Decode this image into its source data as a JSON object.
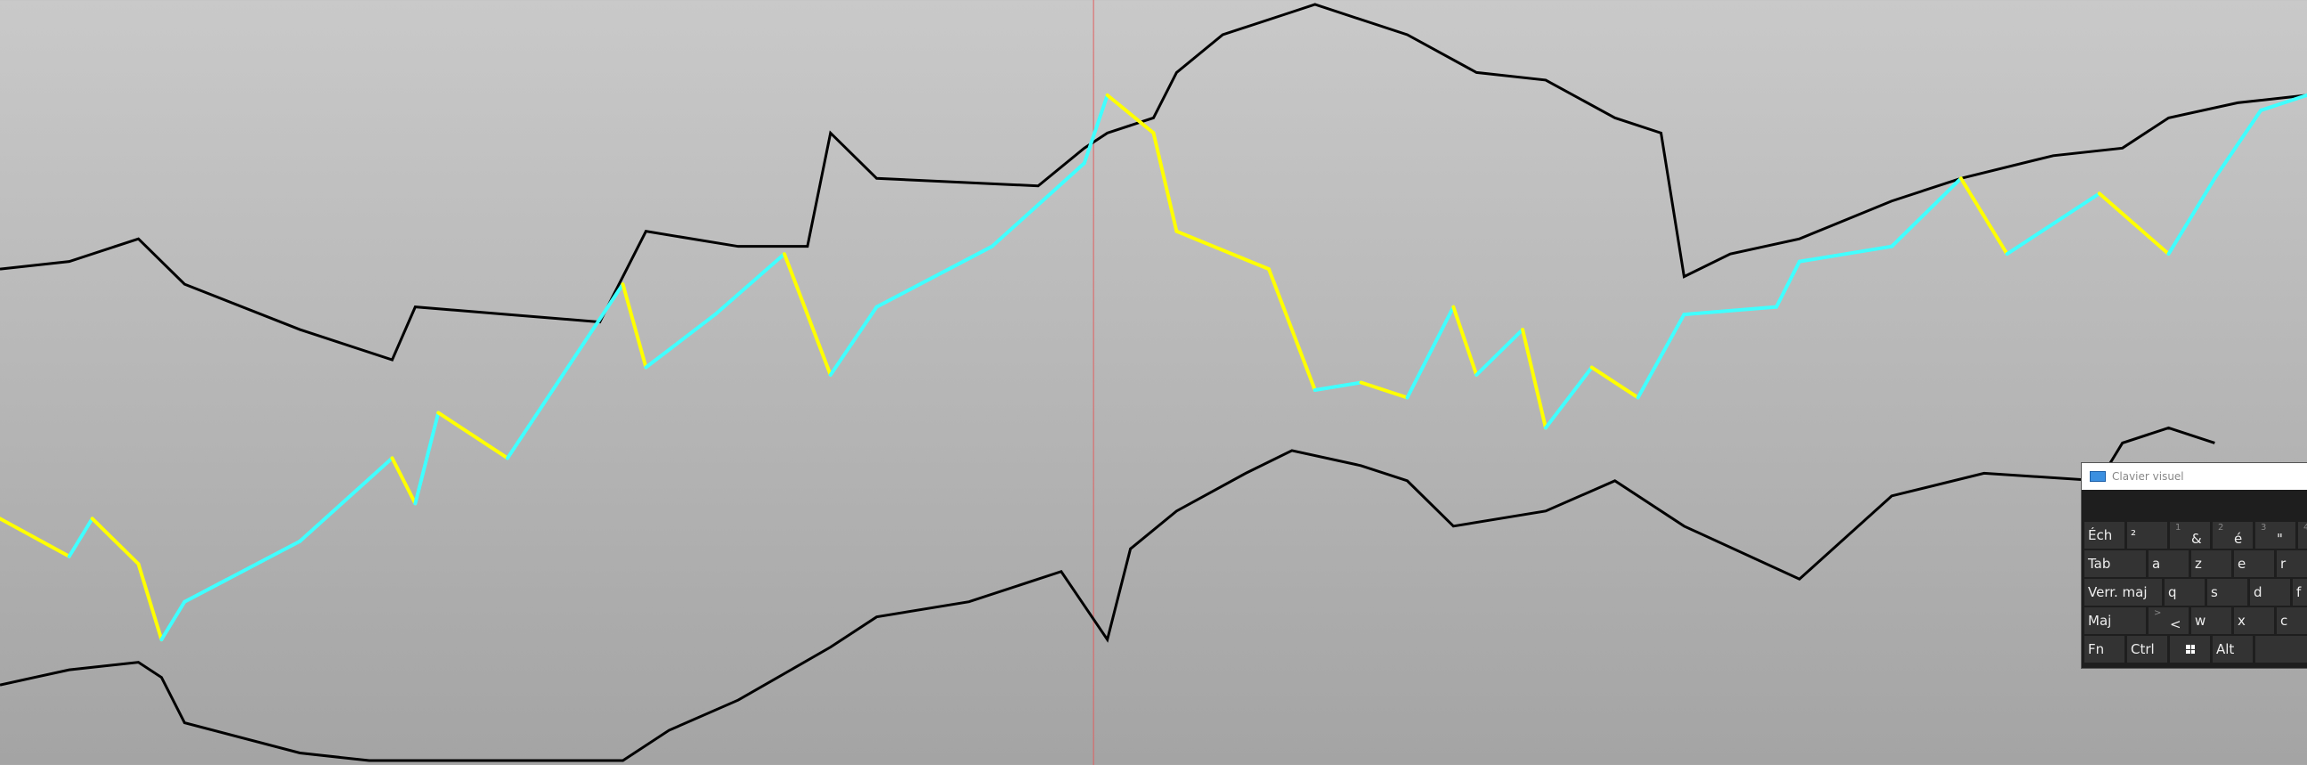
{
  "chart_data": {
    "type": "line",
    "title": "",
    "xlabel": "",
    "ylabel": "",
    "xlim": [
      0,
      100
    ],
    "ylim": [
      0,
      100
    ],
    "grid": false,
    "background": [
      "#c9c9c9",
      "#a4a4a4"
    ],
    "cursor_line_color": "#e06060",
    "series": [
      {
        "color": "#000000",
        "points": [
          [
            0,
            65
          ],
          [
            3,
            66
          ],
          [
            6,
            69
          ],
          [
            8,
            63
          ],
          [
            13,
            57
          ],
          [
            17,
            53
          ],
          [
            18,
            60
          ],
          [
            22,
            59
          ],
          [
            26,
            58
          ],
          [
            28,
            70
          ],
          [
            32,
            68
          ],
          [
            35,
            68
          ],
          [
            36,
            83
          ],
          [
            38,
            77
          ],
          [
            45,
            76
          ],
          [
            47,
            81
          ],
          [
            48,
            83
          ],
          [
            50,
            85
          ],
          [
            51,
            91
          ],
          [
            53,
            96
          ],
          [
            56,
            99
          ],
          [
            57,
            100
          ],
          [
            61,
            96
          ],
          [
            64,
            91
          ],
          [
            67,
            90
          ],
          [
            70,
            85
          ],
          [
            72,
            83
          ],
          [
            73,
            64
          ],
          [
            75,
            67
          ],
          [
            78,
            69
          ],
          [
            82,
            74
          ],
          [
            85,
            77
          ],
          [
            89,
            80
          ],
          [
            92,
            81
          ],
          [
            94,
            85
          ],
          [
            97,
            87
          ],
          [
            100,
            88
          ]
        ]
      },
      {
        "color_up": "#40ffff",
        "color_down": "#ffff00",
        "points": [
          [
            0,
            32
          ],
          [
            3,
            27
          ],
          [
            4,
            32
          ],
          [
            6,
            26
          ],
          [
            7,
            16
          ],
          [
            8,
            21
          ],
          [
            13,
            29
          ],
          [
            17,
            40
          ],
          [
            18,
            34
          ],
          [
            19,
            46
          ],
          [
            22,
            40
          ],
          [
            27,
            63
          ],
          [
            28,
            52
          ],
          [
            31,
            59
          ],
          [
            34,
            67
          ],
          [
            36,
            51
          ],
          [
            38,
            60
          ],
          [
            43,
            68
          ],
          [
            47,
            79
          ],
          [
            48,
            88
          ],
          [
            50,
            83
          ],
          [
            51,
            70
          ],
          [
            55,
            65
          ],
          [
            57,
            49
          ],
          [
            59,
            50
          ],
          [
            61,
            48
          ],
          [
            63,
            60
          ],
          [
            64,
            51
          ],
          [
            66,
            57
          ],
          [
            67,
            44
          ],
          [
            69,
            52
          ],
          [
            71,
            48
          ],
          [
            73,
            59
          ],
          [
            77,
            60
          ],
          [
            78,
            66
          ],
          [
            82,
            68
          ],
          [
            85,
            77
          ],
          [
            87,
            67
          ],
          [
            91,
            75
          ],
          [
            94,
            67
          ],
          [
            96,
            77
          ],
          [
            98,
            86
          ],
          [
            100,
            88
          ]
        ]
      },
      {
        "color": "#000000",
        "points": [
          [
            0,
            10
          ],
          [
            3,
            12
          ],
          [
            6,
            13
          ],
          [
            7,
            11
          ],
          [
            8,
            5
          ],
          [
            13,
            1
          ],
          [
            16,
            0
          ],
          [
            22,
            0
          ],
          [
            27,
            0
          ],
          [
            29,
            4
          ],
          [
            32,
            8
          ],
          [
            36,
            15
          ],
          [
            38,
            19
          ],
          [
            42,
            21
          ],
          [
            46,
            25
          ],
          [
            48,
            16
          ],
          [
            49,
            28
          ],
          [
            51,
            33
          ],
          [
            54,
            38
          ],
          [
            56,
            41
          ],
          [
            59,
            39
          ],
          [
            61,
            37
          ],
          [
            63,
            31
          ],
          [
            67,
            33
          ],
          [
            70,
            37
          ],
          [
            73,
            31
          ],
          [
            78,
            24
          ],
          [
            82,
            35
          ],
          [
            86,
            38
          ],
          [
            91,
            37
          ],
          [
            92,
            42
          ],
          [
            94,
            44
          ],
          [
            96,
            42
          ]
        ]
      }
    ],
    "cursor_x": 47.4
  },
  "keyboard": {
    "title": "Clavier visuel",
    "rows": [
      [
        {
          "label": "Éch"
        },
        {
          "label": "²"
        },
        {
          "sup": "1",
          "label": "&"
        },
        {
          "sup": "2",
          "label": "é"
        },
        {
          "sup": "3",
          "label": "\""
        },
        {
          "sup": "4",
          "label": ""
        }
      ],
      [
        {
          "label": "Tab"
        },
        {
          "label": "a"
        },
        {
          "label": "z"
        },
        {
          "label": "e"
        },
        {
          "label": "r"
        }
      ],
      [
        {
          "label": "Verr. maj"
        },
        {
          "label": "q"
        },
        {
          "label": "s"
        },
        {
          "label": "d"
        },
        {
          "label": "f"
        }
      ],
      [
        {
          "label": "Maj"
        },
        {
          "sup": ">",
          "label": "<"
        },
        {
          "label": "w"
        },
        {
          "label": "x"
        },
        {
          "label": "c"
        }
      ],
      [
        {
          "label": "Fn"
        },
        {
          "label": "Ctrl"
        },
        {
          "label": "",
          "icon": "windows-icon"
        },
        {
          "label": "Alt"
        },
        {
          "label": ""
        }
      ]
    ]
  }
}
